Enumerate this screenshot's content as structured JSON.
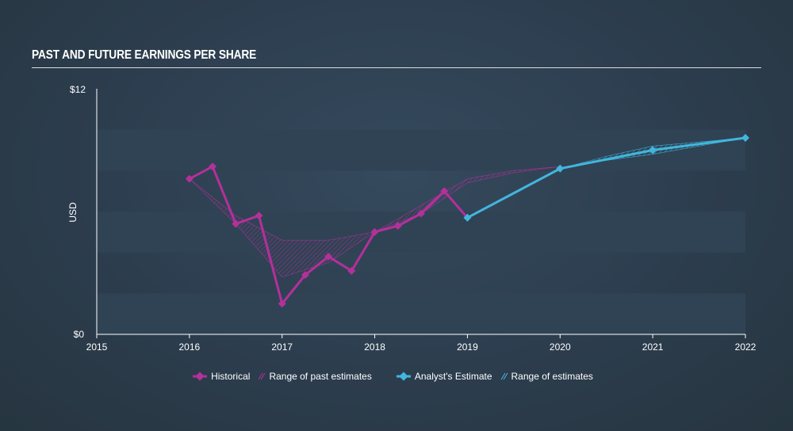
{
  "title": "PAST AND FUTURE EARNINGS PER SHARE",
  "colors": {
    "historical": "#b4309a",
    "estimate": "#42b6de",
    "band_light": "#2f4354",
    "band_dark": "#2a3b4a"
  },
  "chart_data": {
    "type": "line",
    "ylabel": "USD",
    "ylim": [
      0,
      12
    ],
    "yticks": [
      "$0",
      "$12"
    ],
    "xlim": [
      2015,
      2022
    ],
    "xticks": [
      "2015",
      "2016",
      "2017",
      "2018",
      "2019",
      "2020",
      "2021",
      "2022"
    ],
    "series": [
      {
        "name": "Historical",
        "x": [
          2016.0,
          2016.25,
          2016.5,
          2016.75,
          2017.0,
          2017.25,
          2017.5,
          2017.75,
          2018.0,
          2018.25,
          2018.5,
          2018.75,
          2019.0
        ],
        "values": [
          7.6,
          8.2,
          5.4,
          5.8,
          1.5,
          2.9,
          3.8,
          3.1,
          5.0,
          5.3,
          5.9,
          7.0,
          5.7
        ]
      },
      {
        "name": "Analyst's Estimate",
        "x": [
          2019.0,
          2020.0,
          2021.0,
          2022.0
        ],
        "values": [
          5.7,
          8.1,
          9.0,
          9.6
        ]
      }
    ],
    "past_estimate_range": {
      "name": "Range of past estimates",
      "x": [
        2016.0,
        2016.5,
        2017.0,
        2017.5,
        2018.0,
        2018.5,
        2019.0,
        2019.5,
        2020.0
      ],
      "low": [
        7.6,
        5.4,
        2.8,
        3.5,
        5.0,
        5.9,
        7.4,
        7.9,
        8.2
      ],
      "high": [
        7.6,
        5.8,
        4.6,
        4.6,
        5.0,
        6.3,
        7.6,
        8.0,
        8.2
      ]
    },
    "estimate_range": {
      "name": "Range of estimates",
      "x": [
        2020.0,
        2020.5,
        2021.0,
        2021.5,
        2022.0
      ],
      "low": [
        8.1,
        8.5,
        8.8,
        9.2,
        9.6
      ],
      "high": [
        8.1,
        8.7,
        9.2,
        9.4,
        9.6
      ]
    },
    "legend": [
      "Historical",
      "Range of past estimates",
      "Analyst's Estimate",
      "Range of estimates"
    ],
    "legend_position": "bottom-center"
  }
}
